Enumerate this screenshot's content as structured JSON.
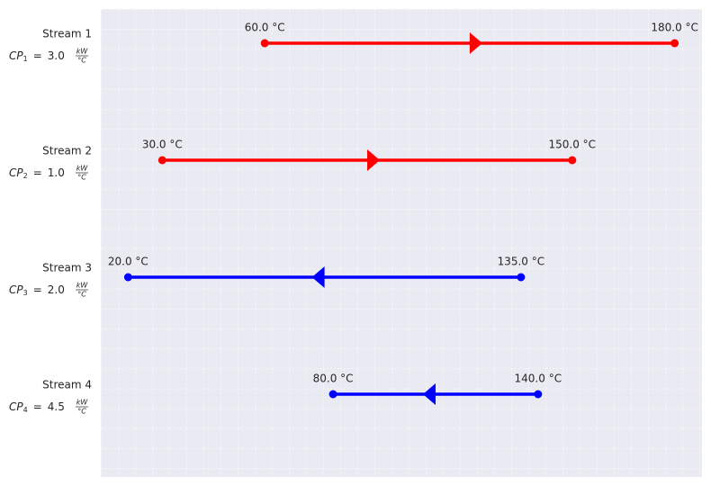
{
  "chart_data": {
    "type": "stream",
    "xlim": [
      12,
      188
    ],
    "grid": true,
    "cp_symbol": "CP",
    "cp_sign": "=",
    "cp_unit_num": "kW",
    "cp_unit_den": "°C",
    "series": [
      {
        "name": "Stream 1",
        "cp_subscript": "1",
        "cp": 3,
        "cp_label": "3.0",
        "color": "#ff0000",
        "values": [
          180,
          60
        ],
        "value_labels": [
          "180.0 °C",
          "60.0 °C"
        ]
      },
      {
        "name": "Stream 2",
        "cp_subscript": "2",
        "cp": 1,
        "cp_label": "1.0",
        "color": "#ff0000",
        "values": [
          150,
          30
        ],
        "value_labels": [
          "150.0 °C",
          "30.0 °C"
        ]
      },
      {
        "name": "Stream 3",
        "cp_subscript": "3",
        "cp": 2,
        "cp_label": "2.0",
        "color": "#0000ff",
        "values": [
          20,
          135
        ],
        "value_labels": [
          "20.0 °C",
          "135.0 °C"
        ]
      },
      {
        "name": "Stream 4",
        "cp_subscript": "4",
        "cp": 4.5,
        "cp_label": "4.5",
        "color": "#0000ff",
        "values": [
          80,
          140
        ],
        "value_labels": [
          "80.0 °C",
          "140.0 °C"
        ]
      }
    ]
  }
}
